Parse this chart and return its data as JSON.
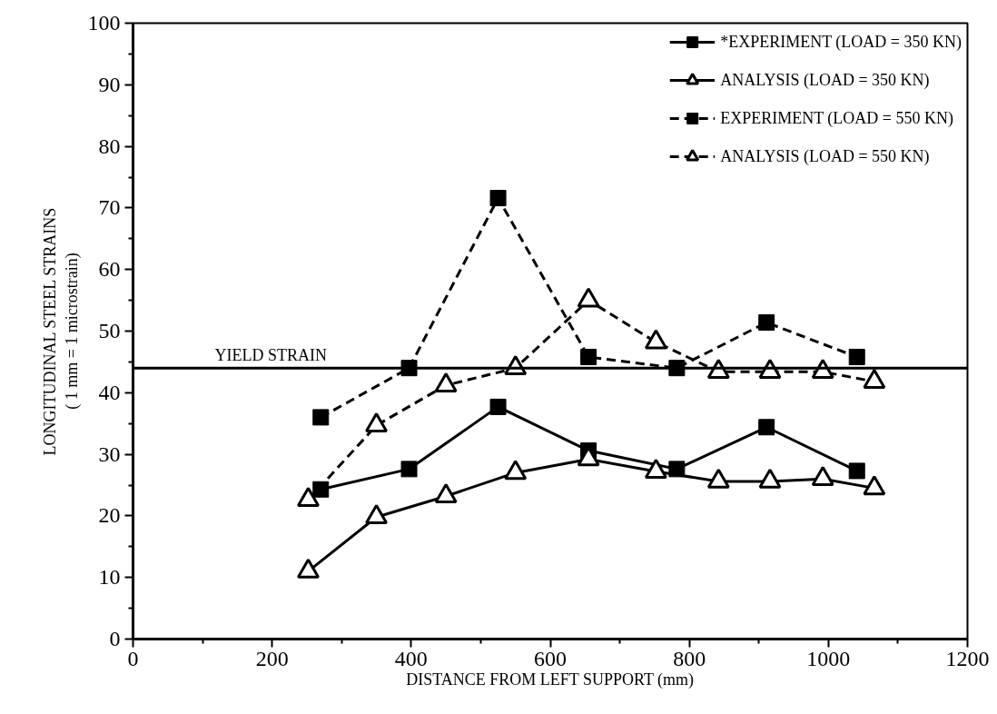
{
  "chart_data": {
    "type": "line",
    "xlabel": "DISTANCE FROM LEFT SUPPORT (mm)",
    "ylabel": "LONGITUDINAL STEEL STRAINS\n( 1 mm = 1 microstrain)",
    "xlim": [
      0,
      1200
    ],
    "ylim": [
      0,
      100
    ],
    "xticks": [
      0,
      {
        "value": 100,
        "label": null
      },
      200,
      {
        "value": 300,
        "label": null
      },
      400,
      {
        "value": 500,
        "label": null
      },
      600,
      {
        "value": 700,
        "label": null
      },
      800,
      {
        "value": 900,
        "label": null
      },
      1000,
      {
        "value": 1100,
        "label": null
      },
      1200
    ],
    "yticks": [
      0,
      {
        "value": 5,
        "label": null
      },
      10,
      {
        "value": 15,
        "label": null
      },
      20,
      {
        "value": 25,
        "label": null
      },
      30,
      {
        "value": 35,
        "label": null
      },
      40,
      {
        "value": 45,
        "label": null
      },
      50,
      {
        "value": 55,
        "label": null
      },
      60,
      {
        "value": 65,
        "label": null
      },
      70,
      {
        "value": 75,
        "label": null
      },
      80,
      {
        "value": 85,
        "label": null
      },
      90,
      {
        "value": 95,
        "label": null
      },
      100
    ],
    "grid": false,
    "legend": "top right",
    "ref_lines": [
      {
        "axis": "y",
        "value": 44,
        "label": "YIELD STRAIN",
        "color": "#000000",
        "line_style": "solid"
      }
    ],
    "series": [
      {
        "name": "*EXPERIMENT (LOAD = 350 KN)",
        "color": "#000000",
        "marker": "square",
        "line_style": "solid",
        "x": [
          270,
          397,
          525,
          655,
          782,
          911,
          1041
        ],
        "values": [
          24.3,
          27.6,
          37.7,
          30.6,
          27.6,
          34.4,
          27.3
        ]
      },
      {
        "name": "ANALYSIS (LOAD = 350 KN)",
        "color": "#000000",
        "marker": "triangle",
        "line_style": "solid",
        "x": [
          252,
          350,
          450,
          550,
          655,
          752,
          842,
          916,
          992,
          1066
        ],
        "values": [
          11,
          19.8,
          23.2,
          27,
          29.2,
          27.2,
          25.6,
          25.6,
          26,
          24.5
        ]
      },
      {
        "name": "EXPERIMENT (LOAD = 550 KN)",
        "color": "#000000",
        "marker": "square",
        "line_style": "dashed",
        "x": [
          270,
          397,
          525,
          655,
          782,
          911,
          1041
        ],
        "values": [
          36,
          44,
          71.6,
          45.8,
          44,
          51.4,
          45.8
        ]
      },
      {
        "name": "ANALYSIS (LOAD = 550 KN)",
        "color": "#000000",
        "marker": "triangle",
        "line_style": "dashed",
        "x": [
          252,
          350,
          450,
          550,
          655,
          752,
          842,
          916,
          992,
          1066
        ],
        "values": [
          22.6,
          34.7,
          41.2,
          44,
          55,
          48.2,
          43.4,
          43.4,
          43.4,
          41.8
        ]
      }
    ]
  }
}
